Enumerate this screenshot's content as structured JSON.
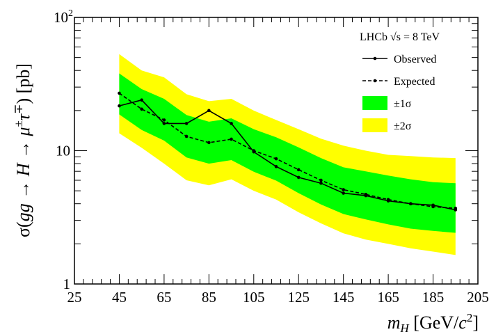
{
  "chart_data": {
    "type": "line",
    "xlabel": "m_H [GeV/c²]",
    "ylabel": "σ(gg → H → μ±τ∓) [pb]",
    "xlim": [
      25,
      205
    ],
    "ylim": [
      1,
      100
    ],
    "y_scale": "log",
    "x_ticks": [
      25,
      45,
      65,
      85,
      105,
      125,
      145,
      165,
      185,
      205
    ],
    "y_tick_labels": [
      {
        "value": 1,
        "label": "1"
      },
      {
        "value": 10,
        "label": "10"
      },
      {
        "value": 100,
        "label": "10²"
      }
    ],
    "legend": {
      "placement": "top-right",
      "title": "LHCb √s = 8 TeV",
      "entries": [
        "Observed",
        "Expected",
        "±1σ",
        "±2σ"
      ]
    },
    "x": [
      45,
      55,
      65,
      75,
      85,
      95,
      105,
      115,
      125,
      135,
      145,
      155,
      165,
      175,
      185,
      195
    ],
    "series": [
      {
        "name": "Observed",
        "style": "solid-line-markers",
        "values": [
          21.7,
          24.0,
          16.0,
          16.0,
          20.0,
          16.0,
          9.8,
          7.6,
          6.3,
          5.7,
          4.8,
          4.6,
          4.2,
          4.0,
          3.9,
          3.6
        ]
      },
      {
        "name": "Expected",
        "style": "dashed-line-markers",
        "values": [
          27.0,
          20.5,
          17.0,
          12.8,
          11.5,
          12.2,
          10.0,
          8.7,
          7.2,
          6.0,
          5.1,
          4.7,
          4.3,
          4.0,
          3.8,
          3.7
        ]
      },
      {
        "name": "±1σ",
        "style": "band",
        "color": "#00ff00",
        "lower": [
          18.7,
          14.3,
          11.9,
          8.9,
          8.0,
          8.5,
          6.95,
          5.96,
          4.8,
          3.95,
          3.35,
          3.05,
          2.8,
          2.6,
          2.5,
          2.42
        ],
        "upper": [
          38.0,
          29.0,
          24.5,
          18.5,
          16.5,
          17.5,
          14.5,
          12.6,
          10.6,
          8.8,
          7.5,
          7.0,
          6.5,
          6.1,
          5.8,
          5.7
        ]
      },
      {
        "name": "±2σ",
        "style": "band",
        "color": "#ffff00",
        "lower": [
          13.5,
          10.5,
          8.0,
          6.0,
          5.5,
          6.1,
          5.0,
          4.3,
          3.45,
          2.85,
          2.4,
          2.15,
          2.0,
          1.85,
          1.75,
          1.65
        ],
        "upper": [
          53.0,
          40.0,
          35.5,
          26.5,
          23.5,
          24.5,
          20.0,
          17.0,
          14.5,
          12.3,
          10.9,
          10.0,
          9.3,
          9.1,
          8.9,
          8.8
        ]
      }
    ]
  }
}
